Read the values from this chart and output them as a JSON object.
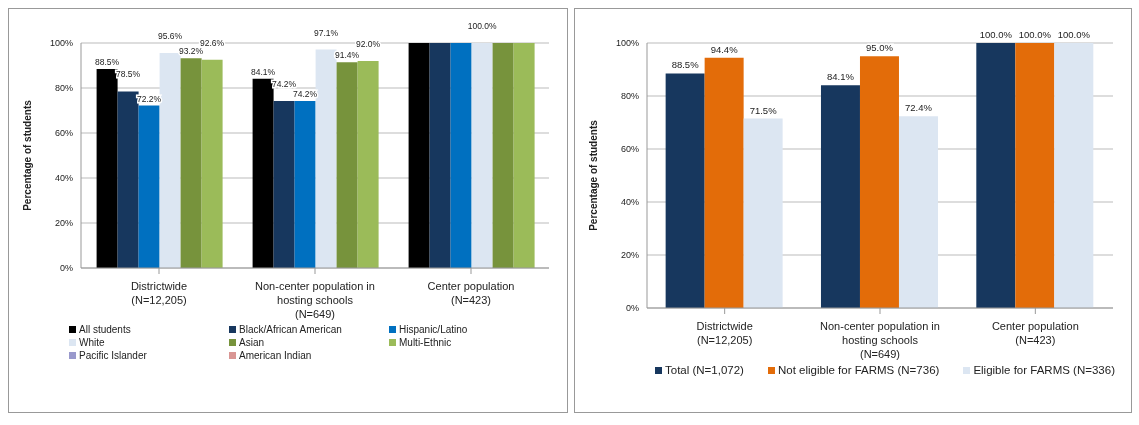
{
  "chart_data": [
    {
      "type": "bar",
      "ylabel": "Percentage of students",
      "categories": [
        "Districtwide (N=12,205)",
        "Non-center population in hosting schools (N=649)",
        "Center population (N=423)"
      ],
      "ylim": [
        0,
        100
      ],
      "yticks": [
        {
          "value": 0,
          "label": "0%"
        },
        {
          "value": 20,
          "label": "20%"
        },
        {
          "value": 40,
          "label": "40%"
        },
        {
          "value": 60,
          "label": "60%"
        },
        {
          "value": 80,
          "label": "80%"
        },
        {
          "value": 100,
          "label": "100%"
        }
      ],
      "grid": "y",
      "legend": "bottom",
      "series": [
        {
          "name": "All students",
          "color": "#000000",
          "values": [
            88.5,
            84.1,
            100
          ],
          "value_labels": [
            "88.5%",
            "84.1%",
            null
          ]
        },
        {
          "name": "Black/African American",
          "color": "#17375e",
          "values": [
            78.5,
            74.2,
            100
          ],
          "value_labels": [
            "78.5%",
            "74.2%",
            null
          ]
        },
        {
          "name": "Hispanic/Latino",
          "color": "#0070c0",
          "values": [
            72.2,
            74.2,
            100
          ],
          "value_labels": [
            "72.2%",
            "74.2%",
            null
          ]
        },
        {
          "name": "White",
          "color": "#dce6f2",
          "values": [
            95.6,
            97.1,
            100
          ],
          "value_labels": [
            "95.6%",
            "97.1%",
            "100.0%"
          ]
        },
        {
          "name": "Asian",
          "color": "#77933c",
          "values": [
            93.2,
            91.4,
            100
          ],
          "value_labels": [
            "93.2%",
            "91.4%",
            null
          ]
        },
        {
          "name": "Multi-Ethnic",
          "color": "#9bbb59",
          "values": [
            92.6,
            92.0,
            100
          ],
          "value_labels": [
            "92.6%",
            "92.0%",
            null
          ]
        },
        {
          "name": "Pacific Islander",
          "color": "#9999cc",
          "values": [
            null,
            null,
            null
          ]
        },
        {
          "name": "American Indian",
          "color": "#d99694",
          "values": [
            null,
            null,
            null
          ]
        }
      ]
    },
    {
      "type": "bar",
      "ylabel": "Percentage of students",
      "categories": [
        "Districtwide (N=12,205)",
        "Non-center population in hosting schools (N=649)",
        "Center population (N=423)"
      ],
      "ylim": [
        0,
        100
      ],
      "yticks": [
        {
          "value": 0,
          "label": "0%"
        },
        {
          "value": 20,
          "label": "20%"
        },
        {
          "value": 40,
          "label": "40%"
        },
        {
          "value": 60,
          "label": "60%"
        },
        {
          "value": 80,
          "label": "80%"
        },
        {
          "value": 100,
          "label": "100%"
        }
      ],
      "grid": "y",
      "legend": "bottom",
      "series": [
        {
          "name": "Total (N=1,072)",
          "color": "#17375e",
          "values": [
            88.5,
            84.1,
            100
          ],
          "value_labels": [
            "88.5%",
            "84.1%",
            "100.0%"
          ]
        },
        {
          "name": "Not eligible for FARMS (N=736)",
          "color": "#e36c09",
          "values": [
            94.4,
            95.0,
            100
          ],
          "value_labels": [
            "94.4%",
            "95.0%",
            "100.0%"
          ]
        },
        {
          "name": "Eligible for FARMS (N=336)",
          "color": "#dce6f2",
          "values": [
            71.5,
            72.4,
            100
          ],
          "value_labels": [
            "71.5%",
            "72.4%",
            "100.0%"
          ]
        }
      ]
    }
  ]
}
